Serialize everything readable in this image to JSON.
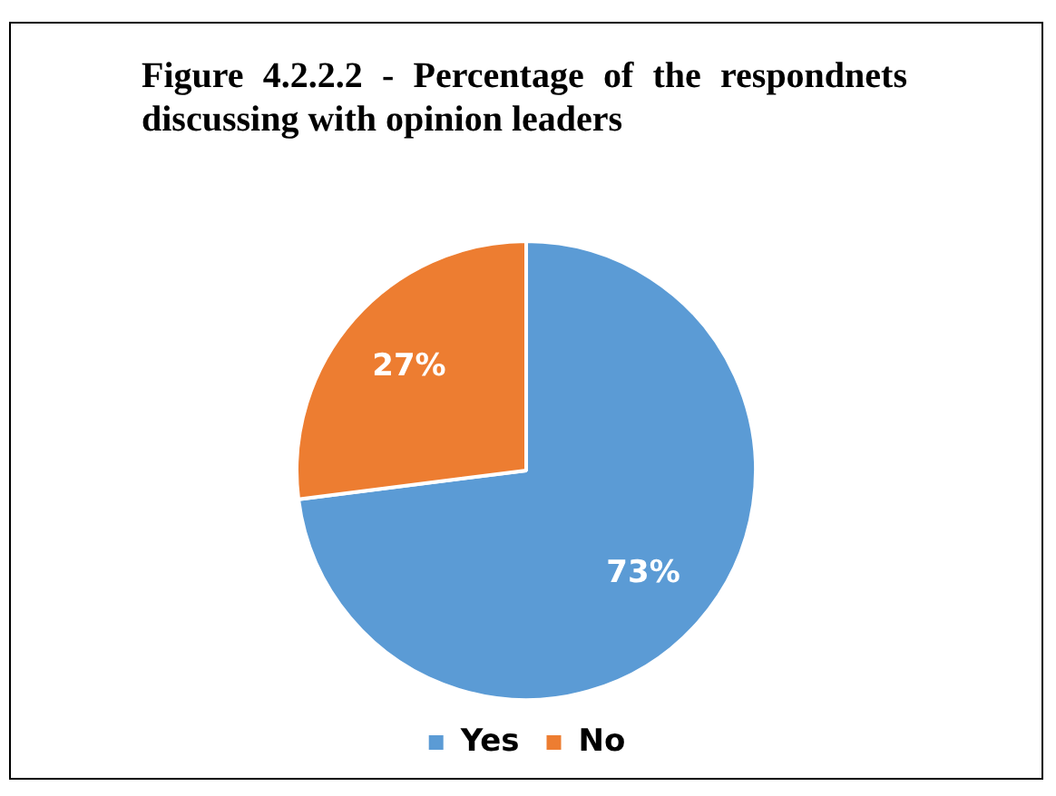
{
  "chart_data": {
    "type": "pie",
    "title": "Figure 4.2.2.2 - Percentage of the respondnets discussing with opinion leaders",
    "categories": [
      "Yes",
      "No"
    ],
    "values": [
      73,
      27
    ],
    "colors": [
      "#5b9bd5",
      "#ed7d31"
    ],
    "value_labels": [
      "73%",
      "27%"
    ],
    "legend": "bottom"
  }
}
